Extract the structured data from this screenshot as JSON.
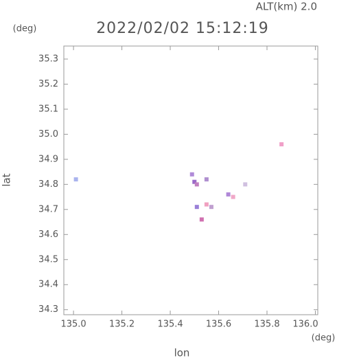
{
  "chart_data": {
    "type": "scatter",
    "title": "2022/02/02 15:12:19",
    "subtitle": "ALT(km) 2.0",
    "y_unit": "(deg)",
    "x_unit": "(deg)",
    "x_label": "lon",
    "y_label": "lat",
    "x": [
      135.01,
      135.49,
      135.5,
      135.51,
      135.55,
      135.51,
      135.55,
      135.57,
      135.53,
      135.64,
      135.66,
      135.71,
      135.86
    ],
    "values": [
      34.82,
      34.84,
      34.81,
      34.8,
      34.82,
      34.71,
      34.72,
      34.71,
      34.66,
      34.76,
      34.75,
      34.8,
      34.96
    ],
    "colors": [
      "#aab4ee",
      "#b08ad8",
      "#9a6ac8",
      "#c080c0",
      "#b090d0",
      "#9a80d8",
      "#f0a0c0",
      "#c0a0d0",
      "#d070b0",
      "#b088d8",
      "#f0a8c8",
      "#d0c0e0",
      "#f0a0c8"
    ],
    "xlim": [
      134.96,
      136.01
    ],
    "ylim": [
      34.28,
      35.352
    ],
    "xticks": [
      {
        "value": 135.0,
        "label": "135.0"
      },
      135.2,
      135.4,
      135.6,
      135.8,
      {
        "value": 136.0,
        "label": "136.0"
      }
    ],
    "yticks": [
      34.3,
      34.4,
      34.5,
      34.6,
      34.7,
      34.8,
      34.9,
      {
        "value": 35.0,
        "label": "35.0"
      },
      35.1,
      35.2,
      35.3
    ]
  }
}
